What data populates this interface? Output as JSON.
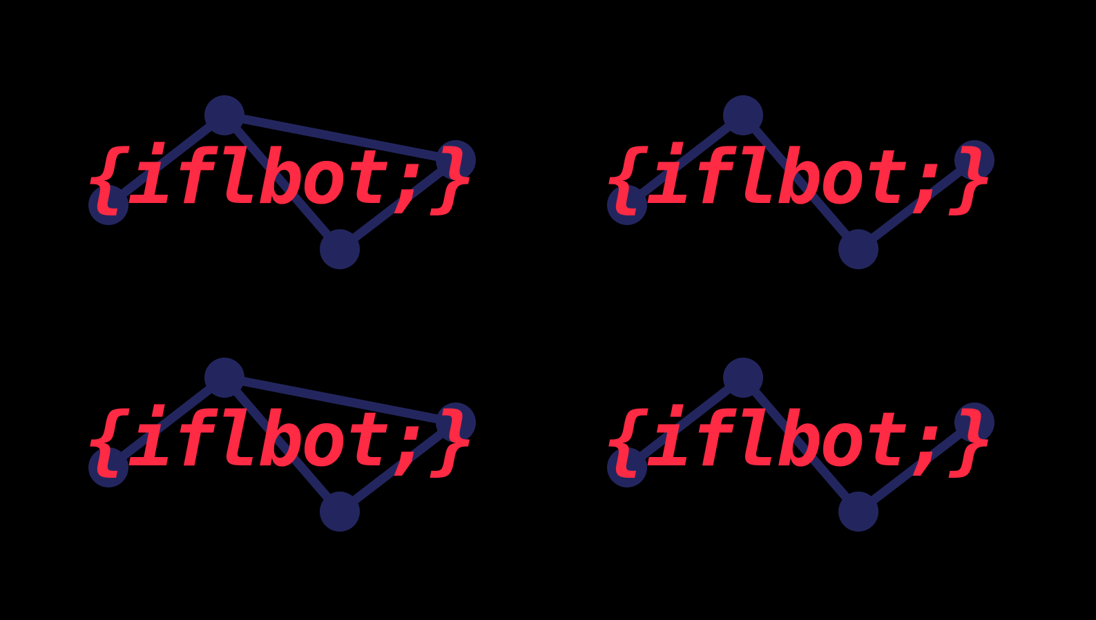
{
  "colors": {
    "background": "#000000",
    "network": "#23265e",
    "text": "#ff2a44"
  },
  "logos": [
    {
      "text": "{iflbot;}",
      "variant": "with-top-edge"
    },
    {
      "text": "{iflbot;}",
      "variant": "without-top-edge"
    },
    {
      "text": "{iflbot;}",
      "variant": "with-top-edge"
    },
    {
      "text": "{iflbot;}",
      "variant": "without-top-edge"
    }
  ]
}
